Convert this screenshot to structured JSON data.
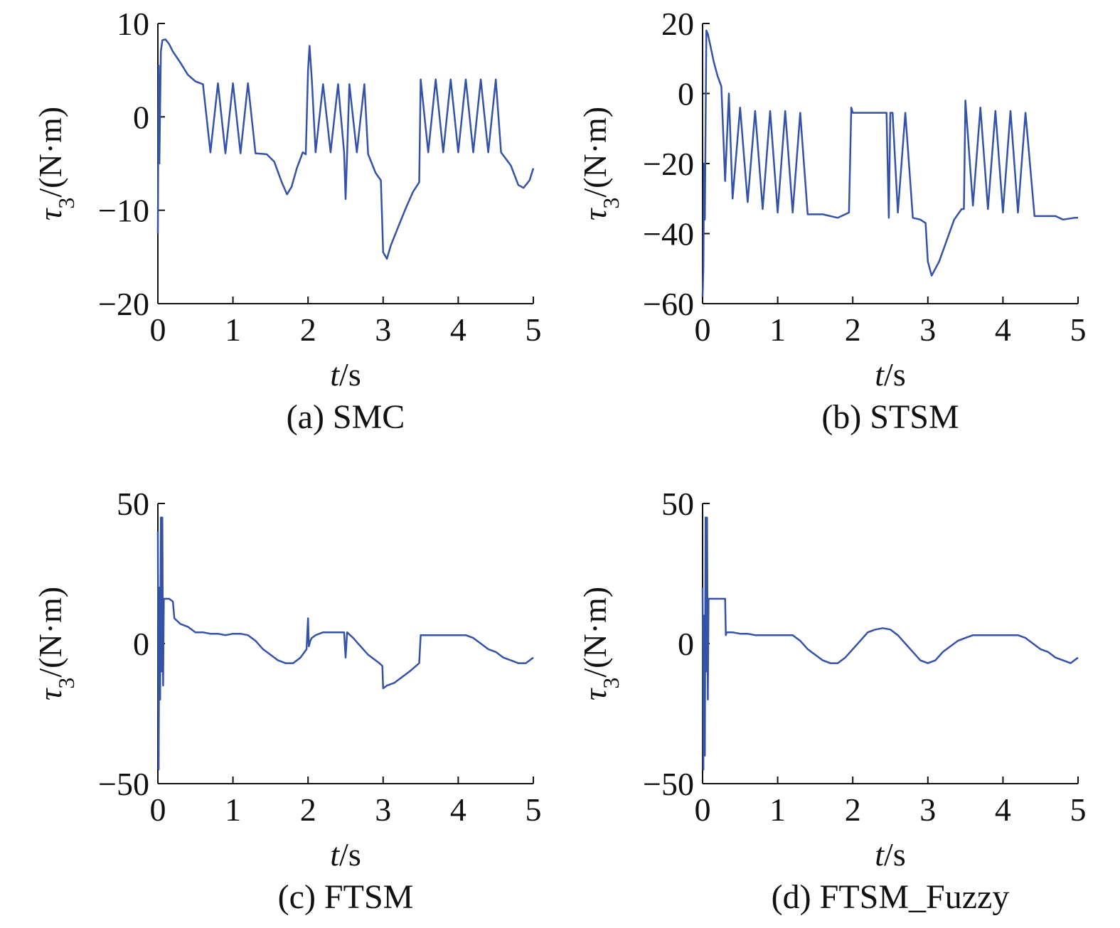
{
  "figure": {
    "line_color": "#3452a8",
    "axis_color": "#111111"
  },
  "chart_data": [
    {
      "type": "line",
      "caption": "(a) SMC",
      "xlabel": {
        "italic": "t",
        "rest": "/s"
      },
      "ylabel": {
        "sym": "τ",
        "sub": "3",
        "rest": "/(N·m)"
      },
      "xlim": [
        0,
        5
      ],
      "ylim": [
        -20,
        10
      ],
      "xticks": [
        0,
        1,
        2,
        3,
        4,
        5
      ],
      "yticks": [
        -20,
        -10,
        0,
        10
      ],
      "ytick_labels": [
        "−20",
        "−10",
        "0",
        "10"
      ],
      "series": [
        {
          "x": [
            0,
            0.01,
            0.02,
            0.04,
            0.06,
            0.1,
            0.15,
            0.2,
            0.3,
            0.4,
            0.5,
            0.6,
            0.7,
            0.8,
            0.9,
            1.0,
            1.1,
            1.2,
            1.3,
            1.45,
            1.55,
            1.65,
            1.72,
            1.78,
            1.85,
            1.93,
            1.97,
            2.0,
            2.02,
            2.05,
            2.1,
            2.2,
            2.3,
            2.4,
            2.48,
            2.5,
            2.52,
            2.55,
            2.65,
            2.75,
            2.8,
            2.9,
            2.97,
            3.0,
            3.05,
            3.1,
            3.2,
            3.3,
            3.4,
            3.48,
            3.5,
            3.6,
            3.7,
            3.8,
            3.9,
            4.0,
            4.1,
            4.2,
            4.3,
            4.4,
            4.5,
            4.57,
            4.7,
            4.8,
            4.87,
            4.95,
            5.0
          ],
          "y": [
            -12.5,
            5.5,
            -5.0,
            7.0,
            8.2,
            8.3,
            7.8,
            7.0,
            5.8,
            4.5,
            3.8,
            3.5,
            -3.8,
            3.6,
            -3.9,
            3.6,
            -3.9,
            3.6,
            -3.9,
            -4.0,
            -4.8,
            -7.0,
            -8.3,
            -7.5,
            -5.5,
            -3.8,
            -4.0,
            5.0,
            7.6,
            4.0,
            -3.8,
            3.5,
            -3.8,
            3.5,
            -3.8,
            -8.8,
            -4.0,
            3.5,
            -3.8,
            3.5,
            -4.0,
            -6.0,
            -6.8,
            -14.5,
            -15.2,
            -13.8,
            -11.8,
            -9.8,
            -8.0,
            -7.0,
            4.0,
            -3.8,
            4.0,
            -3.8,
            4.0,
            -3.8,
            4.0,
            -3.8,
            4.0,
            -3.8,
            4.0,
            -3.8,
            -5.2,
            -7.3,
            -7.6,
            -6.8,
            -5.5
          ]
        }
      ]
    },
    {
      "type": "line",
      "caption": "(b) STSM",
      "xlabel": {
        "italic": "t",
        "rest": "/s"
      },
      "ylabel": {
        "sym": "τ",
        "sub": "3",
        "rest": "/(N·m)"
      },
      "xlim": [
        0,
        5
      ],
      "ylim": [
        -60,
        20
      ],
      "xticks": [
        0,
        1,
        2,
        3,
        4,
        5
      ],
      "yticks": [
        -60,
        -40,
        -20,
        0,
        20
      ],
      "ytick_labels": [
        "−60",
        "−40",
        "−20",
        "0",
        "20"
      ],
      "series": [
        {
          "x": [
            0,
            0.01,
            0.02,
            0.03,
            0.05,
            0.07,
            0.1,
            0.15,
            0.2,
            0.25,
            0.3,
            0.35,
            0.4,
            0.5,
            0.6,
            0.7,
            0.8,
            0.9,
            1.0,
            1.1,
            1.2,
            1.3,
            1.4,
            1.6,
            1.8,
            1.95,
            1.98,
            2.0,
            2.1,
            2.3,
            2.45,
            2.48,
            2.5,
            2.53,
            2.6,
            2.7,
            2.8,
            2.9,
            2.97,
            3.0,
            3.05,
            3.15,
            3.25,
            3.35,
            3.45,
            3.48,
            3.5,
            3.6,
            3.7,
            3.8,
            3.9,
            4.0,
            4.1,
            4.2,
            4.3,
            4.42,
            4.5,
            4.7,
            4.8,
            4.95,
            5.0
          ],
          "y": [
            -58,
            -50,
            -20,
            -36,
            18,
            17,
            14,
            9,
            5,
            2,
            -25,
            0,
            -30,
            -4,
            -31,
            -5,
            -33,
            -5,
            -34,
            -5,
            -34,
            -5.5,
            -34.5,
            -34.5,
            -35.5,
            -34,
            -4,
            -5.5,
            -5.5,
            -5.5,
            -5.5,
            -35.5,
            -5.5,
            -5.5,
            -34,
            -5.5,
            -35.5,
            -36,
            -37,
            -48,
            -52,
            -48,
            -42,
            -36,
            -33,
            -33,
            -2,
            -32,
            -4,
            -33,
            -5,
            -34,
            -5,
            -34,
            -5.5,
            -35,
            -35,
            -35,
            -36,
            -35.5,
            -35.5
          ]
        }
      ]
    },
    {
      "type": "line",
      "caption": "(c) FTSM",
      "xlabel": {
        "italic": "t",
        "rest": "/s"
      },
      "ylabel": {
        "sym": "τ",
        "sub": "3",
        "rest": "/(N·m)"
      },
      "xlim": [
        0,
        5
      ],
      "ylim": [
        -50,
        50
      ],
      "xticks": [
        0,
        1,
        2,
        3,
        4,
        5
      ],
      "yticks": [
        -50,
        0,
        50
      ],
      "ytick_labels": [
        "−50",
        "0",
        "50"
      ],
      "series": [
        {
          "x": [
            0,
            0.01,
            0.02,
            0.03,
            0.04,
            0.05,
            0.06,
            0.07,
            0.08,
            0.09,
            0.1,
            0.15,
            0.2,
            0.22,
            0.3,
            0.4,
            0.5,
            0.6,
            0.7,
            0.8,
            0.9,
            1.0,
            1.1,
            1.2,
            1.3,
            1.4,
            1.5,
            1.6,
            1.7,
            1.8,
            1.9,
            1.98,
            2.0,
            2.01,
            2.03,
            2.05,
            2.1,
            2.2,
            2.3,
            2.4,
            2.48,
            2.5,
            2.52,
            2.6,
            2.7,
            2.8,
            2.9,
            2.95,
            2.99,
            3.0,
            3.05,
            3.15,
            3.25,
            3.35,
            3.48,
            3.5,
            3.6,
            3.7,
            3.8,
            3.9,
            4.0,
            4.1,
            4.2,
            4.3,
            4.4,
            4.5,
            4.6,
            4.7,
            4.8,
            4.9,
            5.0
          ],
          "y": [
            40,
            -45,
            20,
            -20,
            45,
            -10,
            45,
            -15,
            16,
            16,
            16,
            16,
            15,
            9,
            7,
            6,
            4,
            4,
            3.5,
            3.5,
            3,
            3.5,
            3.5,
            3,
            1,
            -2,
            -4,
            -6,
            -7,
            -7,
            -5,
            -2,
            9,
            -1,
            1,
            2,
            3,
            4,
            4,
            4,
            4,
            -5,
            4,
            2,
            -1,
            -4,
            -6,
            -7,
            -8,
            -16,
            -15,
            -14,
            -12,
            -10,
            -7,
            3,
            3,
            3,
            3,
            3,
            3,
            3,
            2,
            0,
            -2,
            -3,
            -5,
            -6,
            -7,
            -7,
            -5
          ]
        }
      ]
    },
    {
      "type": "line",
      "caption": "(d) FTSM_Fuzzy",
      "xlabel": {
        "italic": "t",
        "rest": "/s"
      },
      "ylabel": {
        "sym": "τ",
        "sub": "3",
        "rest": "/(N·m)"
      },
      "xlim": [
        0,
        5
      ],
      "ylim": [
        -50,
        50
      ],
      "xticks": [
        0,
        1,
        2,
        3,
        4,
        5
      ],
      "yticks": [
        -50,
        0,
        50
      ],
      "ytick_labels": [
        "−50",
        "0",
        "50"
      ],
      "series": [
        {
          "x": [
            0,
            0.01,
            0.02,
            0.03,
            0.04,
            0.05,
            0.06,
            0.07,
            0.08,
            0.1,
            0.15,
            0.2,
            0.25,
            0.3,
            0.31,
            0.32,
            0.4,
            0.5,
            0.6,
            0.7,
            0.8,
            0.9,
            1.0,
            1.1,
            1.2,
            1.3,
            1.4,
            1.5,
            1.6,
            1.7,
            1.8,
            1.9,
            2.0,
            2.1,
            2.2,
            2.3,
            2.4,
            2.5,
            2.6,
            2.7,
            2.8,
            2.9,
            3.0,
            3.1,
            3.2,
            3.3,
            3.4,
            3.5,
            3.6,
            3.7,
            3.8,
            3.9,
            4.0,
            4.1,
            4.2,
            4.3,
            4.4,
            4.5,
            4.6,
            4.7,
            4.8,
            4.9,
            5.0
          ],
          "y": [
            20,
            -45,
            10,
            -40,
            45,
            -10,
            45,
            -20,
            16,
            16,
            16,
            16,
            16,
            16,
            3,
            4,
            4,
            3.5,
            3.5,
            3,
            3,
            3,
            3,
            3,
            3,
            1,
            -2,
            -4,
            -6,
            -7,
            -7,
            -5,
            -2,
            1,
            4,
            5,
            5.5,
            5,
            3,
            0,
            -3,
            -6,
            -7,
            -6,
            -3,
            -1,
            1,
            2,
            3,
            3,
            3,
            3,
            3,
            3,
            3,
            2,
            0,
            -2,
            -3,
            -5,
            -6,
            -7,
            -5
          ]
        }
      ]
    }
  ]
}
